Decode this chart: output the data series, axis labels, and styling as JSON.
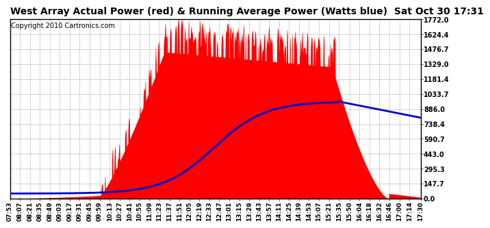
{
  "title": "West Array Actual Power (red) & Running Average Power (Watts blue)  Sat Oct 30 17:31",
  "copyright": "Copyright 2010 Cartronics.com",
  "bg_color": "#ffffff",
  "plot_bg_color": "#ffffff",
  "grid_color": "#aaaaaa",
  "yticks": [
    0.0,
    147.7,
    295.3,
    443.0,
    590.7,
    738.4,
    886.0,
    1033.7,
    1181.4,
    1329.0,
    1476.7,
    1624.4,
    1772.0
  ],
  "ymax": 1772.0,
  "xtick_labels": [
    "07:53",
    "08:07",
    "08:21",
    "08:35",
    "08:49",
    "09:03",
    "09:17",
    "09:31",
    "09:45",
    "09:59",
    "10:13",
    "10:27",
    "10:41",
    "10:55",
    "11:09",
    "11:23",
    "11:37",
    "11:51",
    "12:05",
    "12:19",
    "12:33",
    "12:47",
    "13:01",
    "13:15",
    "13:29",
    "13:43",
    "13:57",
    "14:11",
    "14:25",
    "14:39",
    "14:53",
    "15:07",
    "15:21",
    "15:35",
    "15:50",
    "16:04",
    "16:18",
    "16:32",
    "16:46",
    "17:00",
    "17:14",
    "17:30"
  ],
  "actual_color": "#ff0000",
  "avg_color": "#0000cc",
  "avg_linewidth": 2.0,
  "title_fontsize": 10,
  "tick_fontsize": 7,
  "copyright_fontsize": 7
}
